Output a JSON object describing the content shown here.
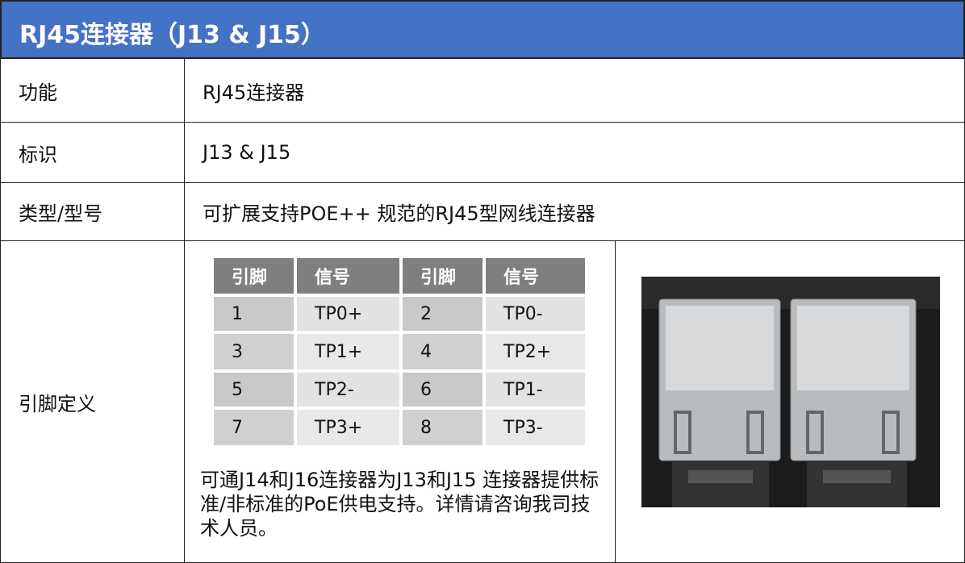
{
  "header": {
    "title": "RJ45连接器（J13 & J15）"
  },
  "table": {
    "rows": [
      {
        "label": "功能",
        "value": "RJ45连接器"
      },
      {
        "label": "标识",
        "value": "J13 & J15"
      },
      {
        "label": "类型/型号",
        "value": "可扩展支持POE++ 规范的RJ45型网线连接器"
      },
      {
        "label": "引脚定义"
      }
    ]
  },
  "pin_table": {
    "header": [
      "引脚",
      "信号",
      "引脚",
      "信号"
    ],
    "rows": [
      [
        "1",
        "TP0+",
        "2",
        "TP0-"
      ],
      [
        "3",
        "TP1+",
        "4",
        "TP2+"
      ],
      [
        "5",
        "TP2-",
        "6",
        "TP1-"
      ],
      [
        "7",
        "TP3+",
        "8",
        "TP3-"
      ]
    ]
  },
  "note": "可通J14和J16连接器为J13和J15 连接器提供标准/非标准的PoE供电支持。详情请咨询我司技术人员。"
}
